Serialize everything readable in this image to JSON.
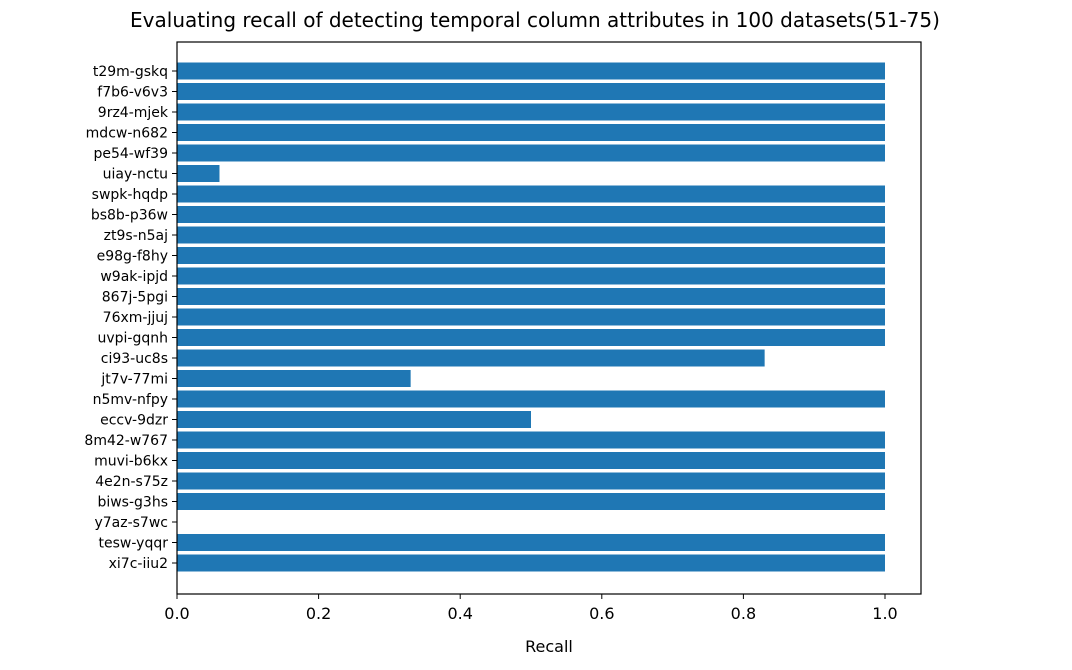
{
  "chart_data": {
    "type": "bar",
    "orientation": "horizontal",
    "title": "Evaluating recall of detecting temporal column attributes in 100 datasets(51-75)",
    "xlabel": "Recall",
    "ylabel": "",
    "xlim": [
      0,
      1.05
    ],
    "xticks": [
      "0.0",
      "0.2",
      "0.4",
      "0.6",
      "0.8",
      "1.0"
    ],
    "grid": false,
    "bar_color": "#1f77b4",
    "categories": [
      "t29m-gskq",
      "f7b6-v6v3",
      "9rz4-mjek",
      "mdcw-n682",
      "pe54-wf39",
      "uiay-nctu",
      "swpk-hqdp",
      "bs8b-p36w",
      "zt9s-n5aj",
      "e98g-f8hy",
      "w9ak-ipjd",
      "867j-5pgi",
      "76xm-jjuj",
      "uvpi-gqnh",
      "ci93-uc8s",
      "jt7v-77mi",
      "n5mv-nfpy",
      "eccv-9dzr",
      "8m42-w767",
      "muvi-b6kx",
      "4e2n-s75z",
      "biws-g3hs",
      "y7az-s7wc",
      "tesw-yqqr",
      "xi7c-iiu2"
    ],
    "values": [
      1.0,
      1.0,
      1.0,
      1.0,
      1.0,
      0.06,
      1.0,
      1.0,
      1.0,
      1.0,
      1.0,
      1.0,
      1.0,
      1.0,
      0.83,
      0.33,
      1.0,
      0.5,
      1.0,
      1.0,
      1.0,
      1.0,
      0.0,
      1.0,
      1.0
    ]
  }
}
